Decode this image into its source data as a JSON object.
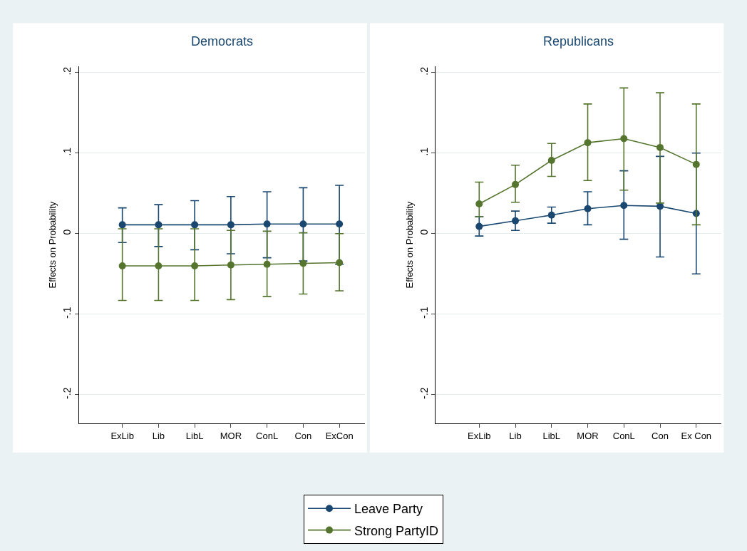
{
  "chart_data": [
    {
      "type": "line",
      "title": "Democrats",
      "ylabel": "Effects on Probability",
      "categories": [
        "ExLib",
        "Lib",
        "LibL",
        "MOR",
        "ConL",
        "Con",
        "ExCon"
      ],
      "ylim": [
        -0.236,
        0.208
      ],
      "yticks": [
        {
          "value": -0.2,
          "label": "-.2"
        },
        {
          "value": -0.1,
          "label": "-.1"
        },
        0,
        {
          "value": 0.1,
          "label": ".1"
        },
        {
          "value": 0.2,
          "label": ".2"
        }
      ],
      "grid": "y",
      "marker": "circle",
      "legend": "bottom",
      "series": [
        {
          "name": "Leave Party",
          "color": "#1a476f",
          "values": [
            0.011,
            0.011,
            0.011,
            0.011,
            0.012,
            0.012,
            0.012
          ],
          "errors": [
            [
              -0.011,
              0.032
            ],
            [
              -0.016,
              0.036
            ],
            [
              -0.02,
              0.041
            ],
            [
              -0.025,
              0.046
            ],
            [
              -0.03,
              0.052
            ],
            [
              -0.034,
              0.057
            ],
            [
              -0.038,
              0.06
            ]
          ]
        },
        {
          "name": "Strong PartyID",
          "color": "#55752f",
          "values": [
            -0.04,
            -0.04,
            -0.04,
            -0.039,
            -0.038,
            -0.037,
            -0.036
          ],
          "errors": [
            [
              -0.083,
              0.006
            ],
            [
              -0.083,
              0.006
            ],
            [
              -0.083,
              0.006
            ],
            [
              -0.082,
              0.004
            ],
            [
              -0.078,
              0.003
            ],
            [
              -0.075,
              0.001
            ],
            [
              -0.071,
              0.0
            ]
          ]
        }
      ]
    },
    {
      "type": "line",
      "title": "Republicans",
      "ylabel": "Effects on Probability",
      "categories": [
        "ExLib",
        "Lib",
        "LibL",
        "MOR",
        "ConL",
        "Con",
        "Ex Con"
      ],
      "ylim": [
        -0.236,
        0.208
      ],
      "yticks": [
        {
          "value": -0.2,
          "label": "-.2"
        },
        {
          "value": -0.1,
          "label": "-.1"
        },
        0,
        {
          "value": 0.1,
          "label": ".1"
        },
        {
          "value": 0.2,
          "label": ".2"
        }
      ],
      "grid": "y",
      "marker": "circle",
      "legend": "bottom",
      "series": [
        {
          "name": "Leave Party",
          "color": "#1a476f",
          "values": [
            0.009,
            0.016,
            0.023,
            0.031,
            0.035,
            0.034,
            0.025
          ],
          "errors": [
            [
              -0.003,
              0.021
            ],
            [
              0.004,
              0.028
            ],
            [
              0.013,
              0.033
            ],
            [
              0.011,
              0.052
            ],
            [
              -0.007,
              0.078
            ],
            [
              -0.029,
              0.096
            ],
            [
              -0.05,
              0.1
            ]
          ]
        },
        {
          "name": "Strong PartyID",
          "color": "#55752f",
          "values": [
            0.037,
            0.061,
            0.091,
            0.113,
            0.118,
            0.107,
            0.086
          ],
          "errors": [
            [
              0.021,
              0.064
            ],
            [
              0.039,
              0.085
            ],
            [
              0.071,
              0.112
            ],
            [
              0.066,
              0.161
            ],
            [
              0.054,
              0.181
            ],
            [
              0.038,
              0.175
            ],
            [
              0.011,
              0.161
            ]
          ]
        }
      ]
    }
  ]
}
